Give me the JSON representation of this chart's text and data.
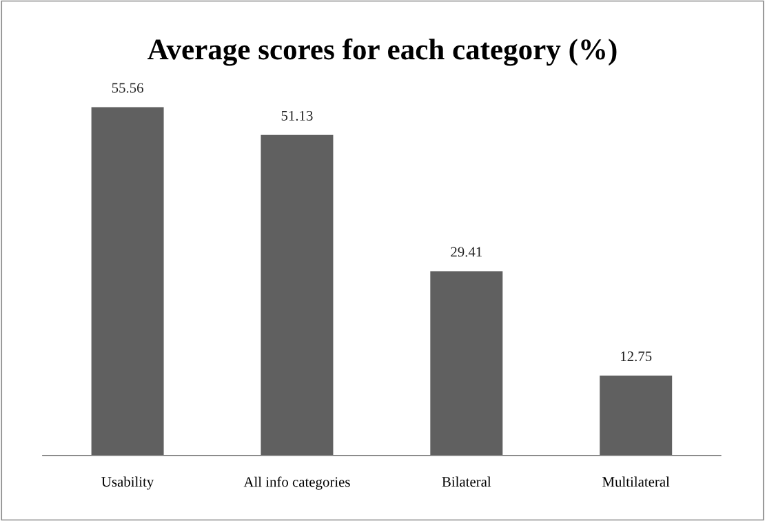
{
  "chart_data": {
    "type": "bar",
    "title": "Average scores for each category (%)",
    "categories": [
      "Usability",
      "All info categories",
      "Bilateral",
      "Multilateral"
    ],
    "values": [
      55.56,
      51.13,
      29.41,
      12.75
    ],
    "color": "#606060",
    "data_labels": true,
    "grid": false,
    "legend": false
  }
}
